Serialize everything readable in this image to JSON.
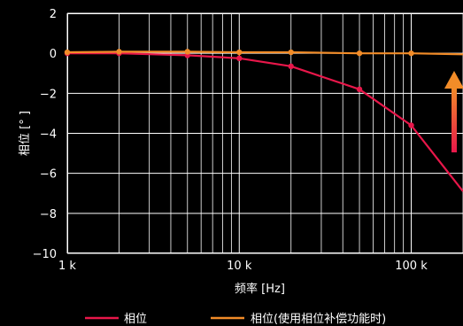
{
  "chart_data": {
    "type": "line",
    "title": "",
    "xlabel": "频率  [Hz]",
    "ylabel": "相位 [° ]",
    "x_scale": "log",
    "xlim": [
      1000,
      200000
    ],
    "ylim": [
      -10,
      2
    ],
    "grid": true,
    "legend_position": "bottom",
    "x_ticks": [
      {
        "value": 1000,
        "label": "1 k"
      },
      {
        "value": 10000,
        "label": "10 k"
      },
      {
        "value": 100000,
        "label": "100 k"
      }
    ],
    "y_ticks": [
      {
        "value": 2,
        "label": "2"
      },
      {
        "value": 0,
        "label": "0"
      },
      {
        "value": -2,
        "label": "−2"
      },
      {
        "value": -4,
        "label": "−4"
      },
      {
        "value": -6,
        "label": "−6"
      },
      {
        "value": -8,
        "label": "−8"
      },
      {
        "value": -10,
        "label": "−10"
      }
    ],
    "series": [
      {
        "name": "相位",
        "color": "#e8174a",
        "points": [
          {
            "x": 1000,
            "y": 0.0
          },
          {
            "x": 2000,
            "y": 0.0
          },
          {
            "x": 5000,
            "y": -0.1
          },
          {
            "x": 10000,
            "y": -0.25
          },
          {
            "x": 20000,
            "y": -0.65
          },
          {
            "x": 50000,
            "y": -1.8
          },
          {
            "x": 100000,
            "y": -3.6
          },
          {
            "x": 200000,
            "y": -6.9
          }
        ]
      },
      {
        "name": "相位(使用相位补偿功能时)",
        "color": "#f28c28",
        "points": [
          {
            "x": 1000,
            "y": 0.05
          },
          {
            "x": 2000,
            "y": 0.08
          },
          {
            "x": 5000,
            "y": 0.08
          },
          {
            "x": 10000,
            "y": 0.05
          },
          {
            "x": 20000,
            "y": 0.05
          },
          {
            "x": 50000,
            "y": 0.0
          },
          {
            "x": 100000,
            "y": 0.0
          },
          {
            "x": 200000,
            "y": -0.05
          }
        ]
      }
    ],
    "annotation_arrow": {
      "direction": "up",
      "color": "#f28c28"
    }
  }
}
